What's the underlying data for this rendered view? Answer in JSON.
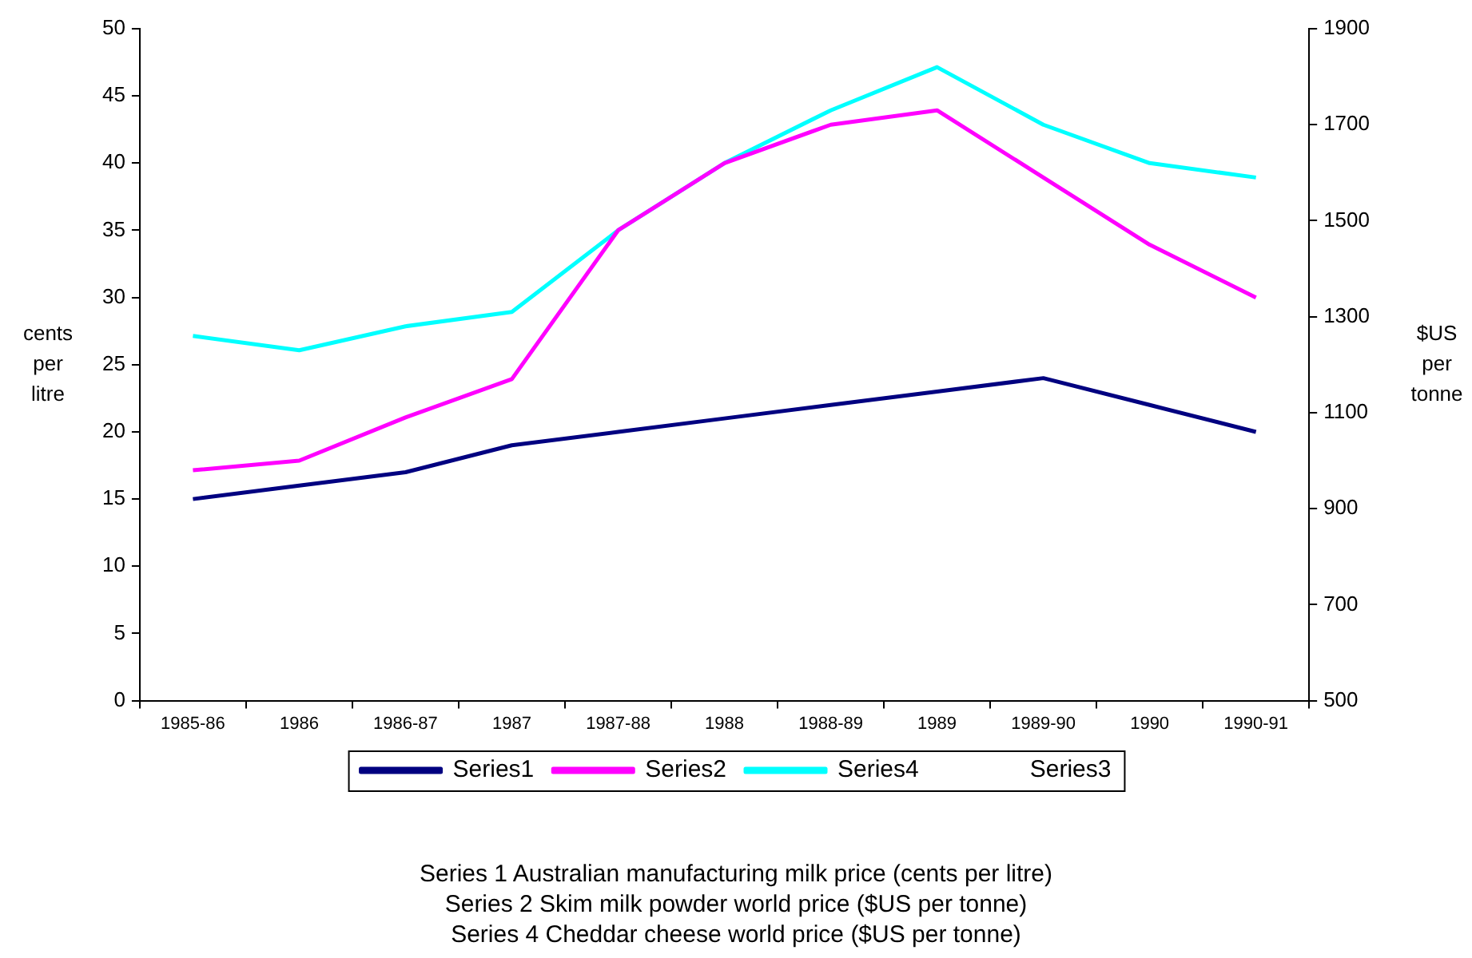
{
  "chart_data": {
    "type": "line",
    "categories": [
      "1985-86",
      "1986",
      "1986-87",
      "1987",
      "1987-88",
      "1988",
      "1988-89",
      "1989",
      "1989-90",
      "1990",
      "1990-91"
    ],
    "ylabel": "cents per litre",
    "y2label": "$US per tonne",
    "ylim": [
      0,
      50
    ],
    "yticks": [
      0,
      5,
      10,
      15,
      20,
      25,
      30,
      35,
      40,
      45,
      50
    ],
    "y2lim": [
      500,
      1900
    ],
    "y2ticks": [
      500,
      700,
      900,
      1100,
      1300,
      1500,
      1700,
      1900
    ],
    "grid": false,
    "legend": "bottom",
    "marker": "none",
    "line_style": "solid",
    "series": [
      {
        "name": "Series1",
        "color": "#000080",
        "values": [
          15,
          16,
          17,
          19,
          20,
          21,
          22,
          23,
          24,
          22,
          20
        ]
      },
      {
        "name": "Series2",
        "color": "#ff00ff",
        "axis": "y2",
        "values": [
          980,
          1000,
          1090,
          1170,
          1480,
          1620,
          1700,
          1730,
          1590,
          1450,
          1340
        ]
      },
      {
        "name": "Series4",
        "color": "#00ffff",
        "axis": "y2",
        "values": [
          1260,
          1230,
          1280,
          1310,
          1480,
          1620,
          1730,
          1820,
          1700,
          1620,
          1590
        ]
      },
      {
        "name": "Series3",
        "axis": "y2",
        "values": [
          null,
          null,
          null,
          null,
          null,
          null,
          null,
          null,
          null,
          null,
          null
        ]
      }
    ],
    "annotations": [
      "Series 1 Australian manufacturing milk price (cents per litre)",
      "Series 2 Skim milk powder world price ($US per tonne)",
      "Series 4 Cheddar cheese world price ($US per tonne)"
    ]
  }
}
